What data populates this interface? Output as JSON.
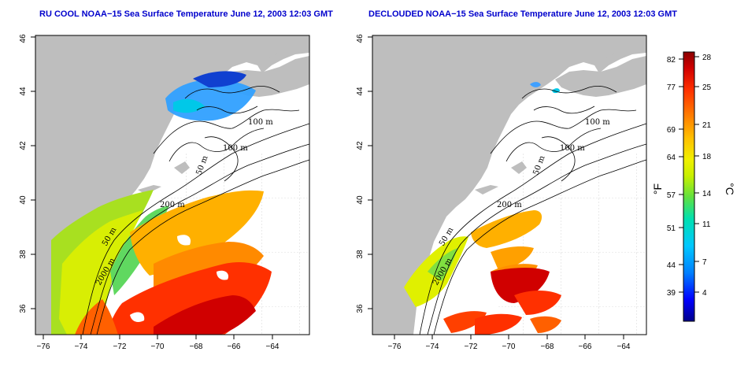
{
  "panels": [
    {
      "id": "left",
      "title": "RU COOL NOAA−15 Sea Surface Temperature June 12, 2003 12:03 GMT",
      "contour_labels": [
        "100 m",
        "100 m",
        "50 m",
        "200 m",
        "50 m",
        "2000 m"
      ]
    },
    {
      "id": "right",
      "title": "DECLOUDED NOAA−15 Sea Surface Temperature June 12, 2003 12:03 GMT",
      "contour_labels": [
        "100 m",
        "100 m",
        "50 m",
        "200 m",
        "50 m",
        "2000 m"
      ]
    }
  ],
  "axes": {
    "x_ticks": [
      "−76",
      "−74",
      "−72",
      "−70",
      "−68",
      "−66",
      "−64"
    ],
    "y_ticks": [
      "36",
      "38",
      "40",
      "42",
      "44",
      "46"
    ]
  },
  "colorbar": {
    "fahrenheit_label": "°F",
    "celsius_label": "°C",
    "fahrenheit_ticks": [
      "82",
      "77",
      "69",
      "64",
      "57",
      "51",
      "44",
      "39"
    ],
    "celsius_ticks": [
      "28",
      "25",
      "21",
      "18",
      "14",
      "11",
      "7",
      "4"
    ],
    "colors": [
      "#00008b",
      "#0000ff",
      "#0080ff",
      "#00c0ff",
      "#00e0c0",
      "#40e060",
      "#a0e020",
      "#e0f000",
      "#ffd000",
      "#ffa000",
      "#ff6000",
      "#ff2000",
      "#c00000",
      "#8b0000"
    ]
  },
  "colors": {
    "land": "#bebebe",
    "ocean": "#ffffff",
    "title": "#0000cc"
  }
}
